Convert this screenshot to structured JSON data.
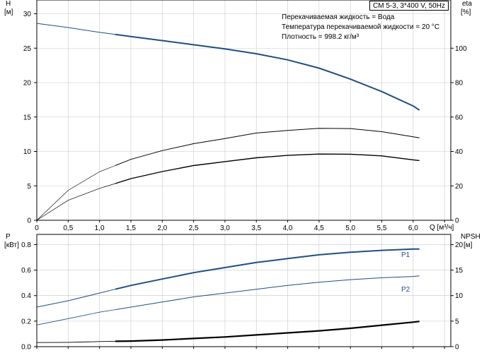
{
  "title_badge": "CM 5-3, 3*400 V, 50Hz",
  "info_lines": [
    "Перекачиваемая жидкость = Вода",
    "Температура перекачиваемой жидкости = 20 °C",
    "Плотность = 998.2 кг/м³"
  ],
  "colors": {
    "blue": "#1f4e82",
    "black": "#000000",
    "grid": "#c8c8c8"
  },
  "chart_data": [
    {
      "type": "line",
      "panel": "top",
      "x_label": "Q [м³/ч]",
      "x_ticks": [
        "0",
        "0,5",
        "1,0",
        "1,5",
        "2,0",
        "2,5",
        "3,0",
        "3,5",
        "4,0",
        "4,5",
        "5,0",
        "5,5",
        "6,0"
      ],
      "xlim": [
        0,
        6.6
      ],
      "y_left_label": [
        "H",
        "[м]"
      ],
      "y_left_ticks": [
        "0",
        "5",
        "10",
        "15",
        "20",
        "25",
        "30"
      ],
      "ylim_left": [
        0,
        32
      ],
      "y_right_label": [
        "eta",
        "[%]"
      ],
      "y_right_ticks": [
        "0",
        "20",
        "40",
        "60",
        "80",
        "100"
      ],
      "ylim_right": [
        0,
        128
      ],
      "grid": true,
      "series": [
        {
          "axis": "left",
          "color": "#1f4e82",
          "x": [
            0,
            0.5,
            1.0,
            1.5,
            2.0,
            2.5,
            3.0,
            3.5,
            4.0,
            4.5,
            5.0,
            5.5,
            6.0,
            6.1
          ],
          "y": [
            28.6,
            28.0,
            27.3,
            26.7,
            26.1,
            25.5,
            24.9,
            24.2,
            23.3,
            22.1,
            20.5,
            18.7,
            16.6,
            16.0
          ]
        },
        {
          "axis": "right",
          "color": "#000000",
          "x": [
            0,
            0.5,
            1.0,
            1.5,
            2.0,
            2.5,
            3.0,
            3.5,
            4.0,
            4.5,
            5.0,
            5.5,
            6.0,
            6.1
          ],
          "y": [
            0,
            17.4,
            28.2,
            35.4,
            40.5,
            44.5,
            47.5,
            50.7,
            52.2,
            53.4,
            53.3,
            51.5,
            48.5,
            47.9
          ]
        },
        {
          "axis": "right",
          "color": "#000000",
          "x": [
            0,
            0.5,
            1.0,
            1.5,
            2.0,
            2.5,
            3.0,
            3.5,
            4.0,
            4.5,
            5.0,
            5.5,
            6.0,
            6.1
          ],
          "y": [
            0,
            11.6,
            18.5,
            24.2,
            28.3,
            31.8,
            34.1,
            36.3,
            37.7,
            38.5,
            38.4,
            37.4,
            35.1,
            34.7
          ]
        }
      ]
    },
    {
      "type": "line",
      "panel": "bottom",
      "x_ticks": [],
      "xlim": [
        0,
        6.6
      ],
      "y_left_label": [
        "P",
        "[кВт]"
      ],
      "y_left_ticks": [
        "0.0",
        "0.2",
        "0.4",
        "0.6",
        "0.8"
      ],
      "ylim_left": [
        0,
        0.88
      ],
      "y_right_label": [
        "NPSH",
        "[м]"
      ],
      "y_right_ticks": [
        "0",
        "5",
        "10",
        "15",
        "20"
      ],
      "ylim_right": [
        0,
        22
      ],
      "grid": true,
      "series": [
        {
          "name": "P1",
          "axis": "left",
          "color": "#1f4e82",
          "x": [
            0,
            0.5,
            1.0,
            1.5,
            2.0,
            2.5,
            3.0,
            3.5,
            4.0,
            4.5,
            5.0,
            5.5,
            6.0,
            6.1
          ],
          "y": [
            0.31,
            0.36,
            0.42,
            0.48,
            0.53,
            0.58,
            0.62,
            0.66,
            0.69,
            0.72,
            0.74,
            0.755,
            0.765,
            0.765
          ]
        },
        {
          "name": "P2",
          "axis": "left",
          "color": "#1f4e82",
          "x": [
            0,
            0.5,
            1.0,
            1.5,
            2.0,
            2.5,
            3.0,
            3.5,
            4.0,
            4.5,
            5.0,
            5.5,
            6.0,
            6.1
          ],
          "y": [
            0.17,
            0.22,
            0.27,
            0.31,
            0.35,
            0.39,
            0.42,
            0.45,
            0.48,
            0.505,
            0.525,
            0.54,
            0.55,
            0.555
          ]
        },
        {
          "axis": "right",
          "color": "#000000",
          "x": [
            0,
            0.5,
            1.0,
            1.5,
            2.0,
            2.5,
            3.0,
            3.5,
            4.0,
            4.5,
            5.0,
            5.5,
            6.0,
            6.1
          ],
          "y": [
            0.8,
            0.85,
            1.0,
            1.1,
            1.3,
            1.6,
            1.9,
            2.3,
            2.7,
            3.1,
            3.6,
            4.2,
            4.8,
            4.95
          ]
        }
      ]
    }
  ]
}
